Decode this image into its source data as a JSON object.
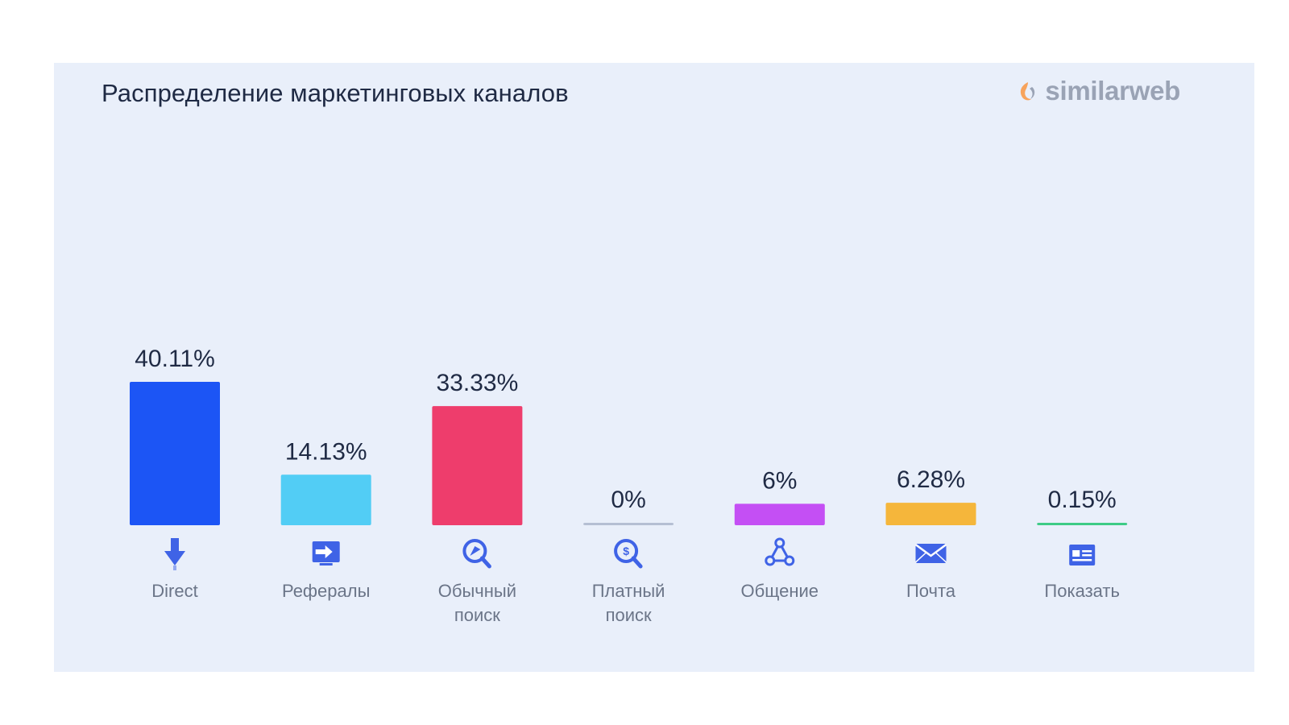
{
  "header": {
    "title": "Распределение маркетинговых каналов",
    "logo_text": "similarweb"
  },
  "colors": {
    "panel_bg": "#e9effa",
    "icon": "#3f63e6"
  },
  "chart_data": {
    "type": "bar",
    "title": "Распределение маркетинговых каналов",
    "xlabel": "",
    "ylabel": "",
    "grid": false,
    "legend": "none",
    "ylim": [
      0,
      40.11
    ],
    "categories": [
      {
        "label": [
          "Direct"
        ],
        "icon": "arrow-down-icon",
        "color": "#1c55f5"
      },
      {
        "label": [
          "Рефералы"
        ],
        "icon": "referral-monitor-icon",
        "color": "#52cdf5"
      },
      {
        "label": [
          "Обычный",
          "поиск"
        ],
        "icon": "search-icon",
        "color": "#ee3d6c"
      },
      {
        "label": [
          "Платный",
          "поиск"
        ],
        "icon": "paid-search-icon",
        "color": "#b5bfd3"
      },
      {
        "label": [
          "Общение"
        ],
        "icon": "social-network-icon",
        "color": "#c44ff4"
      },
      {
        "label": [
          "Почта"
        ],
        "icon": "mail-icon",
        "color": "#f5b63b"
      },
      {
        "label": [
          "Показать"
        ],
        "icon": "display-ad-icon",
        "color": "#3ecb86"
      }
    ],
    "series": [
      {
        "values": [
          40.11,
          14.13,
          33.33,
          0,
          6,
          6.28,
          0.15
        ],
        "value_labels": [
          "40.11%",
          "14.13%",
          "33.33%",
          "0%",
          "6%",
          "6.28%",
          "0.15%"
        ]
      }
    ]
  }
}
